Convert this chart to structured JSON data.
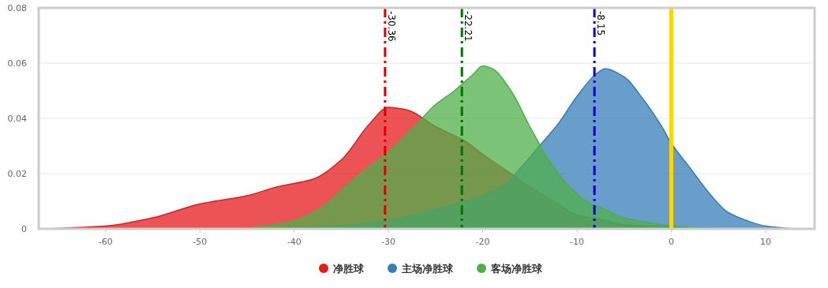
{
  "chart_data": {
    "type": "area",
    "xlim": [
      -67.1,
      15.2
    ],
    "ylim": [
      0,
      0.08
    ],
    "xticks": [
      -60,
      -50,
      -40,
      -30,
      -20,
      -10,
      0,
      10
    ],
    "yticks": [
      0,
      0.02,
      0.04,
      0.06,
      0.08
    ],
    "grid": "y",
    "legend": "bottom",
    "marker": "none",
    "series": [
      {
        "name": "净胜球",
        "color": "#e41a1c",
        "x": [
          -66,
          -60,
          -55,
          -50,
          -45,
          -42,
          -38,
          -35,
          -32,
          -30,
          -28,
          -25,
          -22,
          -20,
          -17,
          -15,
          -12,
          -10,
          -7,
          -5,
          0,
          5
        ],
        "values": [
          0,
          0.001,
          0.004,
          0.009,
          0.012,
          0.015,
          0.018,
          0.025,
          0.038,
          0.044,
          0.043,
          0.037,
          0.032,
          0.027,
          0.02,
          0.015,
          0.009,
          0.005,
          0.003,
          0.0015,
          0.0005,
          0
        ]
      },
      {
        "name": "主场净胜球",
        "color": "#377eb8",
        "x": [
          -45,
          -35,
          -30,
          -25,
          -20,
          -18,
          -16,
          -14,
          -12,
          -10,
          -8,
          -7,
          -5,
          -3,
          -1,
          0,
          2,
          4,
          6,
          8,
          10,
          13
        ],
        "values": [
          0,
          0.001,
          0.003,
          0.007,
          0.012,
          0.015,
          0.022,
          0.03,
          0.038,
          0.048,
          0.056,
          0.058,
          0.055,
          0.047,
          0.037,
          0.031,
          0.022,
          0.013,
          0.006,
          0.003,
          0.001,
          0
        ]
      },
      {
        "name": "客场净胜球",
        "color": "#4daf4a",
        "x": [
          -45,
          -40,
          -37,
          -35,
          -33,
          -30,
          -27,
          -25,
          -23,
          -21,
          -20,
          -19,
          -17,
          -15,
          -13,
          -11,
          -9,
          -7,
          -5,
          -2,
          0,
          5
        ],
        "values": [
          0,
          0.003,
          0.008,
          0.014,
          0.02,
          0.028,
          0.038,
          0.045,
          0.05,
          0.056,
          0.059,
          0.058,
          0.05,
          0.037,
          0.025,
          0.016,
          0.01,
          0.007,
          0.004,
          0.002,
          0.001,
          0
        ]
      }
    ],
    "ref_lines": [
      {
        "axis": "x",
        "value": -30.36,
        "label": "-30.36",
        "color": "#dd0000",
        "line_style": "dashed"
      },
      {
        "axis": "x",
        "value": -22.21,
        "label": "-22.21",
        "color": "#007700",
        "line_style": "dashed"
      },
      {
        "axis": "x",
        "value": -8.15,
        "label": "-8.15",
        "color": "#0000cc",
        "line_style": "dashed"
      },
      {
        "axis": "x",
        "value": 0,
        "color": "#ffd700",
        "line_style": "solid"
      }
    ]
  }
}
